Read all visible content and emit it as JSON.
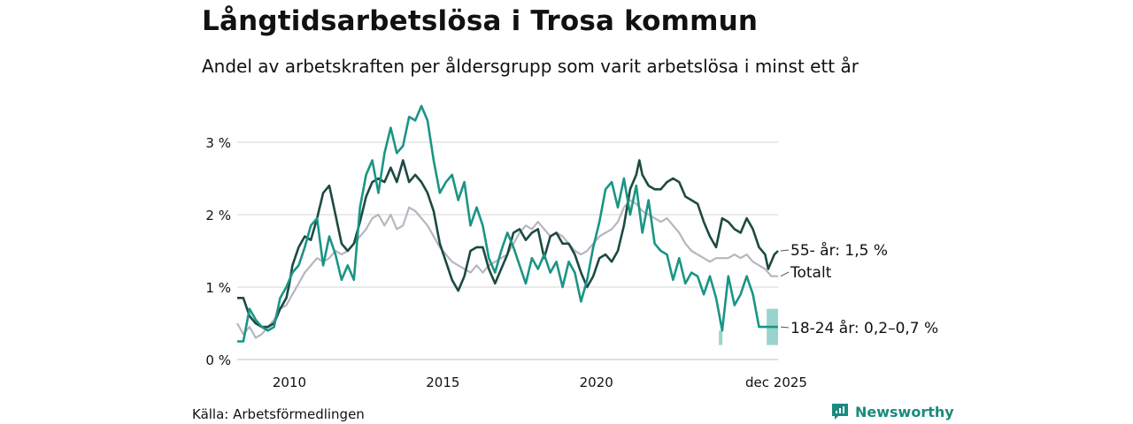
{
  "title": "Långtidsarbetslösa i Trosa kommun",
  "subtitle": "Andel av arbetskraften per åldersgrupp som varit arbetslösa i minst ett år",
  "source": "Källa: Arbetsförmedlingen",
  "brand": {
    "name": "Newsworthy",
    "icon": "newsworthy-logo-icon",
    "color": "#1a8a7e"
  },
  "colors": {
    "gridline": "#dddddd",
    "baseline": "#cccccc",
    "series_55": "#1c4a42",
    "series_total": "#b8b5bf",
    "series_18_24": "#1a9585",
    "uncertainty_band": "#9ad3cb"
  },
  "chart_data": {
    "type": "line",
    "title": "Långtidsarbetslösa i Trosa kommun",
    "ylabel": "",
    "xlabel": "",
    "x_start": 2008.3,
    "x_end": 2025.92,
    "ylim": [
      0,
      3.55
    ],
    "y_ticks": [
      0,
      1,
      2,
      3
    ],
    "y_tick_labels": [
      "0 %",
      "1 %",
      "2 %",
      "3 %"
    ],
    "x_ticks": [
      2010,
      2015,
      2020,
      2025.92
    ],
    "x_tick_labels": [
      "2010",
      "2015",
      "2020",
      "dec 2025"
    ],
    "grid": true,
    "series": [
      {
        "name": "55-",
        "end_label": "55- år: 1,5 %",
        "color": "#1c4a42",
        "points": [
          [
            2008.3,
            0.85
          ],
          [
            2008.5,
            0.85
          ],
          [
            2008.7,
            0.6
          ],
          [
            2008.9,
            0.5
          ],
          [
            2009.1,
            0.45
          ],
          [
            2009.3,
            0.45
          ],
          [
            2009.5,
            0.5
          ],
          [
            2009.7,
            0.7
          ],
          [
            2009.9,
            0.85
          ],
          [
            2010.0,
            1.05
          ],
          [
            2010.1,
            1.3
          ],
          [
            2010.3,
            1.55
          ],
          [
            2010.5,
            1.7
          ],
          [
            2010.7,
            1.65
          ],
          [
            2010.9,
            1.95
          ],
          [
            2011.1,
            2.3
          ],
          [
            2011.3,
            2.4
          ],
          [
            2011.5,
            2.0
          ],
          [
            2011.7,
            1.6
          ],
          [
            2011.9,
            1.5
          ],
          [
            2012.1,
            1.6
          ],
          [
            2012.3,
            1.9
          ],
          [
            2012.5,
            2.25
          ],
          [
            2012.7,
            2.45
          ],
          [
            2012.9,
            2.5
          ],
          [
            2013.1,
            2.45
          ],
          [
            2013.3,
            2.65
          ],
          [
            2013.5,
            2.45
          ],
          [
            2013.7,
            2.75
          ],
          [
            2013.9,
            2.45
          ],
          [
            2014.1,
            2.55
          ],
          [
            2014.3,
            2.45
          ],
          [
            2014.5,
            2.3
          ],
          [
            2014.7,
            2.05
          ],
          [
            2014.9,
            1.6
          ],
          [
            2015.1,
            1.35
          ],
          [
            2015.3,
            1.1
          ],
          [
            2015.5,
            0.95
          ],
          [
            2015.7,
            1.15
          ],
          [
            2015.9,
            1.5
          ],
          [
            2016.1,
            1.55
          ],
          [
            2016.3,
            1.55
          ],
          [
            2016.5,
            1.25
          ],
          [
            2016.7,
            1.05
          ],
          [
            2016.9,
            1.25
          ],
          [
            2017.1,
            1.45
          ],
          [
            2017.3,
            1.75
          ],
          [
            2017.5,
            1.8
          ],
          [
            2017.7,
            1.65
          ],
          [
            2017.9,
            1.75
          ],
          [
            2018.1,
            1.8
          ],
          [
            2018.3,
            1.4
          ],
          [
            2018.5,
            1.7
          ],
          [
            2018.7,
            1.75
          ],
          [
            2018.9,
            1.6
          ],
          [
            2019.1,
            1.6
          ],
          [
            2019.3,
            1.45
          ],
          [
            2019.5,
            1.2
          ],
          [
            2019.7,
            1.0
          ],
          [
            2019.9,
            1.15
          ],
          [
            2020.1,
            1.4
          ],
          [
            2020.3,
            1.45
          ],
          [
            2020.5,
            1.35
          ],
          [
            2020.7,
            1.5
          ],
          [
            2020.9,
            1.85
          ],
          [
            2021.1,
            2.35
          ],
          [
            2021.3,
            2.55
          ],
          [
            2021.4,
            2.75
          ],
          [
            2021.5,
            2.55
          ],
          [
            2021.7,
            2.4
          ],
          [
            2021.9,
            2.35
          ],
          [
            2022.1,
            2.35
          ],
          [
            2022.3,
            2.45
          ],
          [
            2022.5,
            2.5
          ],
          [
            2022.7,
            2.45
          ],
          [
            2022.9,
            2.25
          ],
          [
            2023.1,
            2.2
          ],
          [
            2023.3,
            2.15
          ],
          [
            2023.5,
            1.9
          ],
          [
            2023.7,
            1.7
          ],
          [
            2023.9,
            1.55
          ],
          [
            2024.1,
            1.95
          ],
          [
            2024.3,
            1.9
          ],
          [
            2024.5,
            1.8
          ],
          [
            2024.7,
            1.75
          ],
          [
            2024.9,
            1.95
          ],
          [
            2025.1,
            1.8
          ],
          [
            2025.3,
            1.55
          ],
          [
            2025.5,
            1.45
          ],
          [
            2025.6,
            1.25
          ],
          [
            2025.8,
            1.45
          ],
          [
            2025.92,
            1.5
          ]
        ]
      },
      {
        "name": "Totalt",
        "end_label": "Totalt",
        "color": "#b8b5bf",
        "points": [
          [
            2008.3,
            0.5
          ],
          [
            2008.5,
            0.35
          ],
          [
            2008.7,
            0.45
          ],
          [
            2008.9,
            0.3
          ],
          [
            2009.1,
            0.35
          ],
          [
            2009.3,
            0.45
          ],
          [
            2009.5,
            0.55
          ],
          [
            2009.7,
            0.7
          ],
          [
            2009.9,
            0.75
          ],
          [
            2010.1,
            0.9
          ],
          [
            2010.3,
            1.05
          ],
          [
            2010.5,
            1.2
          ],
          [
            2010.7,
            1.3
          ],
          [
            2010.9,
            1.4
          ],
          [
            2011.1,
            1.35
          ],
          [
            2011.3,
            1.4
          ],
          [
            2011.5,
            1.5
          ],
          [
            2011.7,
            1.45
          ],
          [
            2011.9,
            1.5
          ],
          [
            2012.1,
            1.6
          ],
          [
            2012.3,
            1.7
          ],
          [
            2012.5,
            1.8
          ],
          [
            2012.7,
            1.95
          ],
          [
            2012.9,
            2.0
          ],
          [
            2013.1,
            1.85
          ],
          [
            2013.3,
            2.0
          ],
          [
            2013.5,
            1.8
          ],
          [
            2013.7,
            1.85
          ],
          [
            2013.9,
            2.1
          ],
          [
            2014.1,
            2.05
          ],
          [
            2014.3,
            1.95
          ],
          [
            2014.5,
            1.85
          ],
          [
            2014.7,
            1.7
          ],
          [
            2014.9,
            1.55
          ],
          [
            2015.1,
            1.45
          ],
          [
            2015.3,
            1.35
          ],
          [
            2015.5,
            1.3
          ],
          [
            2015.7,
            1.25
          ],
          [
            2015.9,
            1.2
          ],
          [
            2016.1,
            1.3
          ],
          [
            2016.3,
            1.2
          ],
          [
            2016.5,
            1.3
          ],
          [
            2016.7,
            1.35
          ],
          [
            2016.9,
            1.4
          ],
          [
            2017.1,
            1.45
          ],
          [
            2017.3,
            1.6
          ],
          [
            2017.5,
            1.75
          ],
          [
            2017.7,
            1.85
          ],
          [
            2017.9,
            1.8
          ],
          [
            2018.1,
            1.9
          ],
          [
            2018.3,
            1.8
          ],
          [
            2018.5,
            1.7
          ],
          [
            2018.7,
            1.75
          ],
          [
            2018.9,
            1.7
          ],
          [
            2019.1,
            1.6
          ],
          [
            2019.3,
            1.5
          ],
          [
            2019.5,
            1.45
          ],
          [
            2019.7,
            1.5
          ],
          [
            2019.9,
            1.6
          ],
          [
            2020.1,
            1.7
          ],
          [
            2020.3,
            1.75
          ],
          [
            2020.5,
            1.8
          ],
          [
            2020.7,
            1.9
          ],
          [
            2020.9,
            2.1
          ],
          [
            2021.1,
            2.2
          ],
          [
            2021.3,
            2.15
          ],
          [
            2021.5,
            2.05
          ],
          [
            2021.7,
            2.0
          ],
          [
            2021.9,
            1.95
          ],
          [
            2022.1,
            1.9
          ],
          [
            2022.3,
            1.95
          ],
          [
            2022.5,
            1.85
          ],
          [
            2022.7,
            1.75
          ],
          [
            2022.9,
            1.6
          ],
          [
            2023.1,
            1.5
          ],
          [
            2023.3,
            1.45
          ],
          [
            2023.5,
            1.4
          ],
          [
            2023.7,
            1.35
          ],
          [
            2023.9,
            1.4
          ],
          [
            2024.1,
            1.4
          ],
          [
            2024.3,
            1.4
          ],
          [
            2024.5,
            1.45
          ],
          [
            2024.7,
            1.4
          ],
          [
            2024.9,
            1.45
          ],
          [
            2025.1,
            1.35
          ],
          [
            2025.3,
            1.3
          ],
          [
            2025.5,
            1.25
          ],
          [
            2025.7,
            1.15
          ],
          [
            2025.92,
            1.15
          ]
        ]
      },
      {
        "name": "18-24",
        "end_label": "18-24 år: 0,2–0,7 %",
        "color": "#1a9585",
        "points": [
          [
            2008.3,
            0.25
          ],
          [
            2008.5,
            0.25
          ],
          [
            2008.7,
            0.7
          ],
          [
            2008.9,
            0.55
          ],
          [
            2009.1,
            0.45
          ],
          [
            2009.3,
            0.4
          ],
          [
            2009.5,
            0.45
          ],
          [
            2009.7,
            0.85
          ],
          [
            2009.9,
            1.0
          ],
          [
            2010.1,
            1.2
          ],
          [
            2010.3,
            1.3
          ],
          [
            2010.5,
            1.55
          ],
          [
            2010.7,
            1.85
          ],
          [
            2010.9,
            1.95
          ],
          [
            2011.1,
            1.3
          ],
          [
            2011.3,
            1.7
          ],
          [
            2011.5,
            1.45
          ],
          [
            2011.7,
            1.1
          ],
          [
            2011.9,
            1.3
          ],
          [
            2012.1,
            1.1
          ],
          [
            2012.3,
            2.1
          ],
          [
            2012.5,
            2.55
          ],
          [
            2012.7,
            2.75
          ],
          [
            2012.9,
            2.3
          ],
          [
            2013.1,
            2.85
          ],
          [
            2013.3,
            3.2
          ],
          [
            2013.5,
            2.85
          ],
          [
            2013.7,
            2.95
          ],
          [
            2013.9,
            3.35
          ],
          [
            2014.1,
            3.3
          ],
          [
            2014.3,
            3.5
          ],
          [
            2014.5,
            3.3
          ],
          [
            2014.7,
            2.75
          ],
          [
            2014.9,
            2.3
          ],
          [
            2015.1,
            2.45
          ],
          [
            2015.3,
            2.55
          ],
          [
            2015.5,
            2.2
          ],
          [
            2015.7,
            2.45
          ],
          [
            2015.9,
            1.85
          ],
          [
            2016.1,
            2.1
          ],
          [
            2016.3,
            1.85
          ],
          [
            2016.5,
            1.4
          ],
          [
            2016.7,
            1.2
          ],
          [
            2016.9,
            1.5
          ],
          [
            2017.1,
            1.75
          ],
          [
            2017.3,
            1.55
          ],
          [
            2017.5,
            1.3
          ],
          [
            2017.7,
            1.05
          ],
          [
            2017.9,
            1.4
          ],
          [
            2018.1,
            1.25
          ],
          [
            2018.3,
            1.45
          ],
          [
            2018.5,
            1.2
          ],
          [
            2018.7,
            1.35
          ],
          [
            2018.9,
            1.0
          ],
          [
            2019.1,
            1.35
          ],
          [
            2019.3,
            1.2
          ],
          [
            2019.5,
            0.8
          ],
          [
            2019.7,
            1.1
          ],
          [
            2019.9,
            1.55
          ],
          [
            2020.1,
            1.9
          ],
          [
            2020.3,
            2.35
          ],
          [
            2020.5,
            2.45
          ],
          [
            2020.7,
            2.1
          ],
          [
            2020.9,
            2.5
          ],
          [
            2021.1,
            2.0
          ],
          [
            2021.3,
            2.4
          ],
          [
            2021.5,
            1.75
          ],
          [
            2021.7,
            2.2
          ],
          [
            2021.9,
            1.6
          ],
          [
            2022.1,
            1.5
          ],
          [
            2022.3,
            1.45
          ],
          [
            2022.5,
            1.1
          ],
          [
            2022.7,
            1.4
          ],
          [
            2022.9,
            1.05
          ],
          [
            2023.1,
            1.2
          ],
          [
            2023.3,
            1.15
          ],
          [
            2023.5,
            0.9
          ],
          [
            2023.7,
            1.15
          ],
          [
            2023.9,
            0.85
          ],
          [
            2024.1,
            0.4
          ],
          [
            2024.3,
            1.15
          ],
          [
            2024.5,
            0.75
          ],
          [
            2024.7,
            0.9
          ],
          [
            2024.9,
            1.15
          ],
          [
            2025.1,
            0.9
          ],
          [
            2025.3,
            0.45
          ],
          [
            2025.5,
            0.45
          ],
          [
            2025.7,
            0.45
          ],
          [
            2025.92,
            0.45
          ]
        ],
        "band": {
          "x_from": 2025.55,
          "x_to": 2025.92,
          "low": 0.2,
          "high": 0.7
        },
        "dip_markers": [
          {
            "x": 2024.05,
            "low": 0.2,
            "high": 0.4
          }
        ]
      }
    ]
  }
}
